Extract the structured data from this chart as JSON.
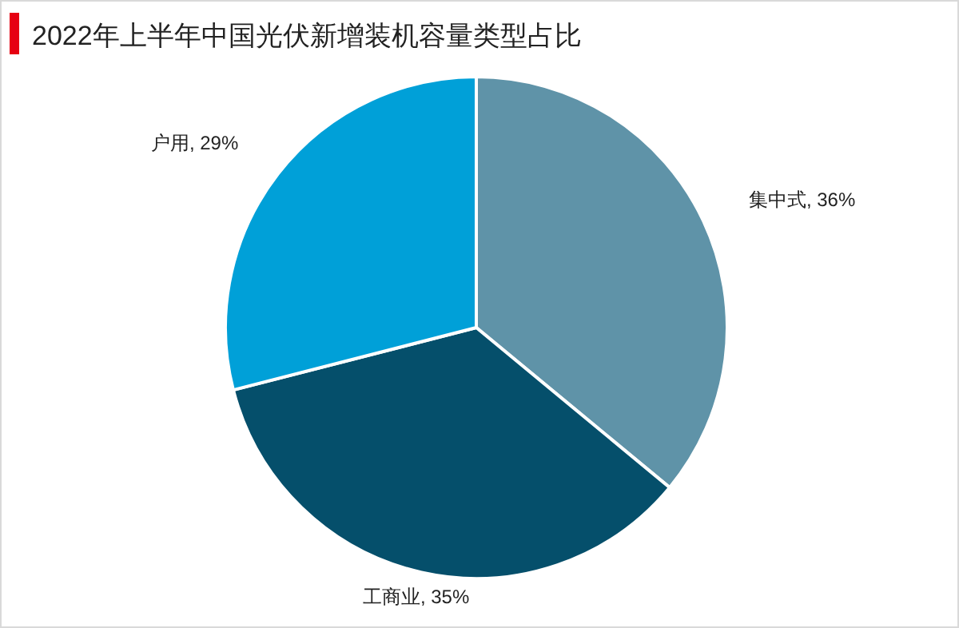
{
  "chart_data": {
    "type": "pie",
    "title": "2022年上半年中国光伏新增装机容量类型占比",
    "categories": [
      "集中式",
      "工商业",
      "户用"
    ],
    "values": [
      36,
      35,
      29
    ],
    "colors": [
      "#5f93a8",
      "#054f6b",
      "#00a0d8"
    ],
    "value_labels": [
      "36%",
      "35%",
      "29%"
    ]
  }
}
